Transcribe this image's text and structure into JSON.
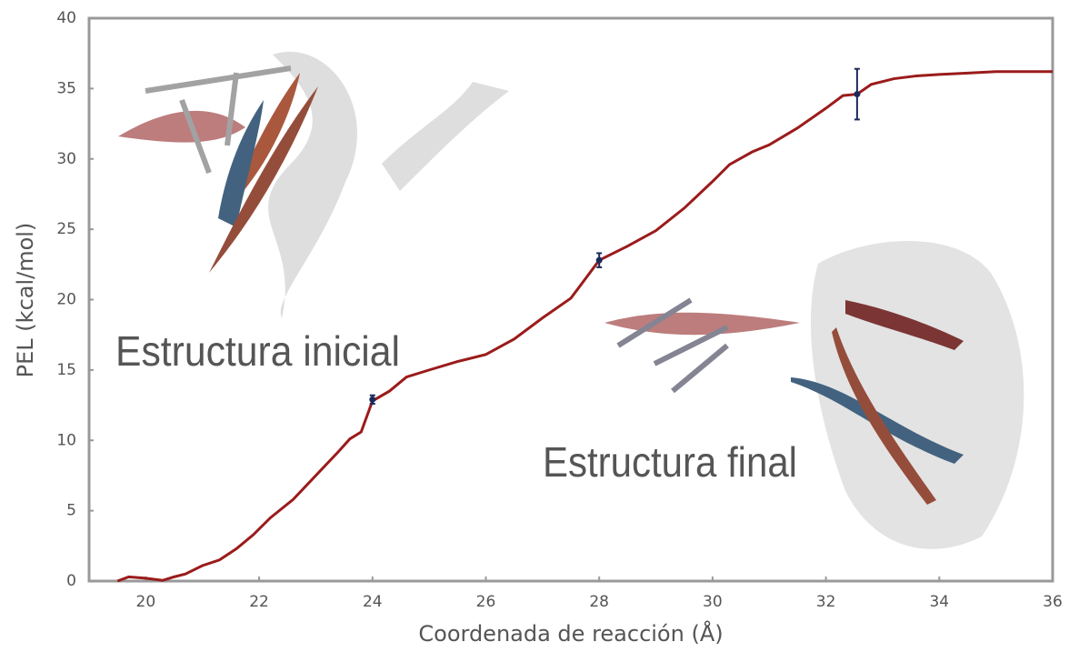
{
  "chart_data": {
    "type": "line",
    "xlabel": "Coordenada de reacción (Å)",
    "ylabel": "PEL (kcal/mol)",
    "xlim": [
      19,
      36
    ],
    "xticks": [
      20,
      22,
      24,
      26,
      28,
      30,
      32,
      34,
      36
    ],
    "ylim": [
      0,
      40
    ],
    "yticks": [
      0,
      5,
      10,
      15,
      20,
      25,
      30,
      35,
      40
    ],
    "grid": false,
    "annotations": [
      "Estructura inicial",
      "Estructura final"
    ],
    "series": [
      {
        "color": "#9b1b1b",
        "x": [
          19.5,
          19.7,
          20,
          20.3,
          20.5,
          20.7,
          21,
          21.3,
          21.6,
          21.9,
          22.2,
          22.6,
          23,
          23.4,
          23.6,
          23.8,
          24,
          24.3,
          24.6,
          25,
          25.5,
          26,
          26.5,
          27,
          27.5,
          28,
          28.5,
          29,
          29.5,
          30,
          30.3,
          30.7,
          31,
          31.5,
          32,
          32.3,
          32.55,
          32.8,
          33.2,
          33.6,
          34,
          34.5,
          35,
          35.5,
          36
        ],
        "values": [
          0,
          0.3,
          0.2,
          0.05,
          0.3,
          0.5,
          1.1,
          1.5,
          2.3,
          3.3,
          4.5,
          5.8,
          7.5,
          9.2,
          10.1,
          10.6,
          12.8,
          13.5,
          14.5,
          15,
          15.6,
          16.1,
          17.2,
          18.7,
          20.1,
          22.8,
          23.8,
          24.9,
          26.5,
          28.4,
          29.6,
          30.5,
          31,
          32.2,
          33.6,
          34.5,
          34.6,
          35.3,
          35.7,
          35.9,
          36,
          36.1,
          36.2,
          36.2,
          36.2
        ]
      }
    ],
    "error_bars": {
      "color": "#1a2a5a",
      "x": [
        24,
        28,
        32.55
      ],
      "values": [
        12.9,
        22.8,
        34.6
      ],
      "errors": [
        0.3,
        0.5,
        1.8
      ]
    }
  }
}
